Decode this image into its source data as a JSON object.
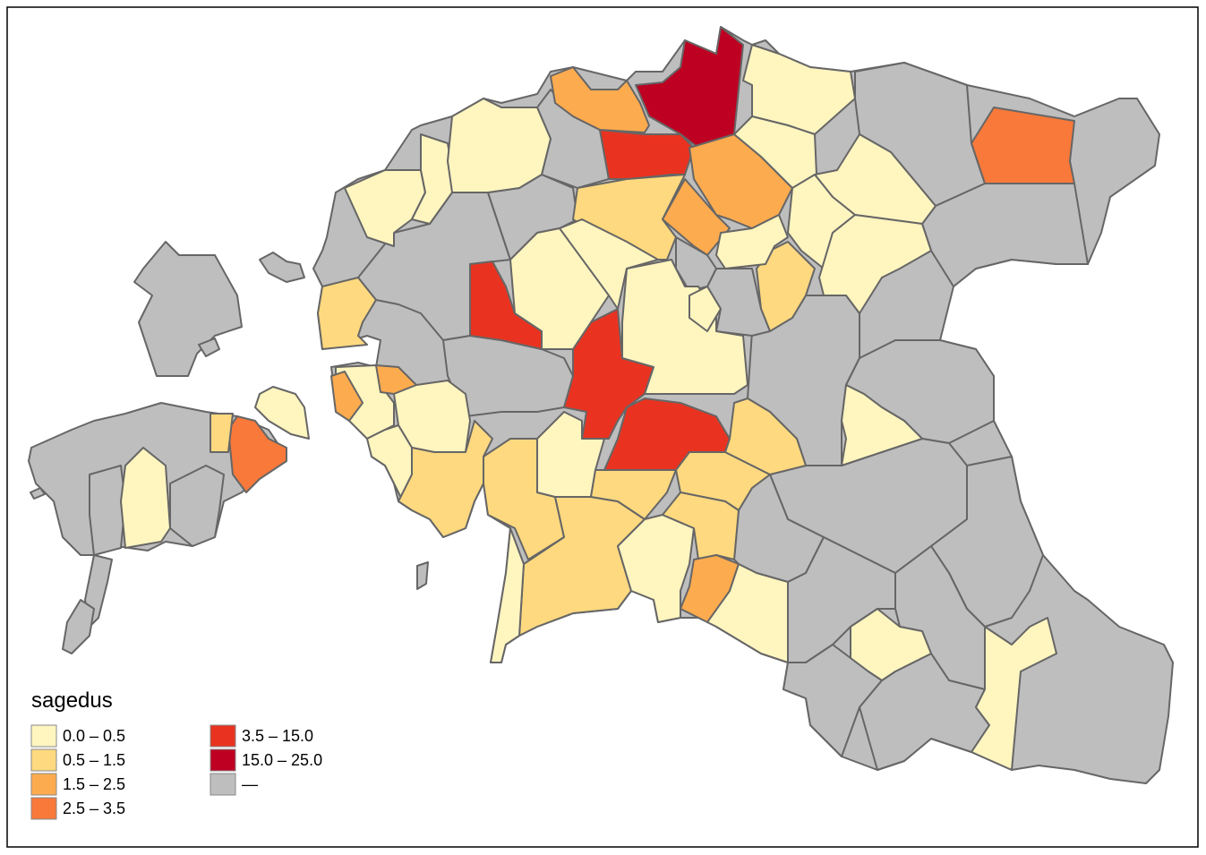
{
  "legend": {
    "title": "sagedus",
    "items": [
      {
        "label": "0.0 – 0.5",
        "color": "#fff5bf"
      },
      {
        "label": "0.5 – 1.5",
        "color": "#fed97f"
      },
      {
        "label": "1.5 – 2.5",
        "color": "#fdab4f"
      },
      {
        "label": "2.5 – 3.5",
        "color": "#f8793a"
      },
      {
        "label": "3.5 – 15.0",
        "color": "#e93320"
      },
      {
        "label": "15.0 – 25.0",
        "color": "#be0022"
      },
      {
        "label": "—",
        "color": "#bebebe"
      }
    ]
  }
}
